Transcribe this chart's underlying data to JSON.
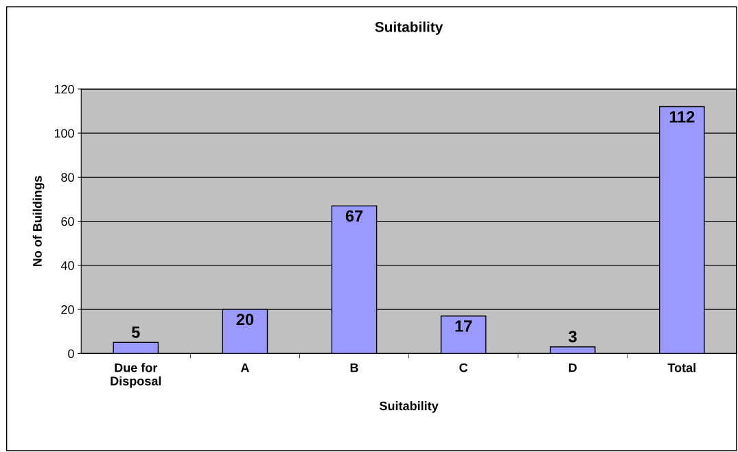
{
  "chart_data": {
    "type": "bar",
    "title": "Suitability",
    "xlabel": "Suitability",
    "ylabel": "No of Buildings",
    "categories": [
      "Due for\nDisposal",
      "A",
      "B",
      "C",
      "D",
      "Total"
    ],
    "values": [
      5,
      20,
      67,
      17,
      3,
      112
    ],
    "color": "#9999ff",
    "ylim": [
      0,
      120
    ],
    "yticks": [
      0,
      20,
      40,
      60,
      80,
      100,
      120
    ],
    "grid": "y",
    "data_labels": true
  }
}
